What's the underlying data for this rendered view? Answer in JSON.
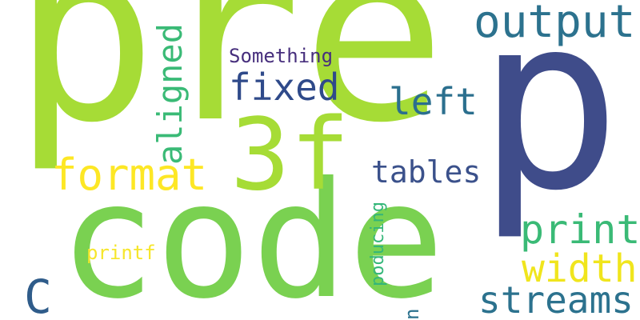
{
  "words": [
    {
      "text": "pre",
      "color": "#a6dc36"
    },
    {
      "text": "p",
      "color": "#3f4c8a"
    },
    {
      "text": "code",
      "color": "#7ad151"
    },
    {
      "text": "3f",
      "color": "#a6dc36"
    },
    {
      "text": "output",
      "color": "#2c728e"
    },
    {
      "text": "format",
      "color": "#fde725"
    },
    {
      "text": "aligned",
      "color": "#3aba76"
    },
    {
      "text": "fixed",
      "color": "#2f4a8a"
    },
    {
      "text": "left",
      "color": "#2b6f8e"
    },
    {
      "text": "Something",
      "color": "#472f7d"
    },
    {
      "text": "tables",
      "color": "#3b518b"
    },
    {
      "text": "print",
      "color": "#3aba76"
    },
    {
      "text": "width",
      "color": "#f0e51d"
    },
    {
      "text": "streams",
      "color": "#2c728e"
    },
    {
      "text": "C",
      "color": "#2f5c8a"
    },
    {
      "text": "printf",
      "color": "#f6e62b"
    },
    {
      "text": "poducing",
      "color": "#34b679"
    },
    {
      "text": "n",
      "color": "#2c728e"
    }
  ]
}
